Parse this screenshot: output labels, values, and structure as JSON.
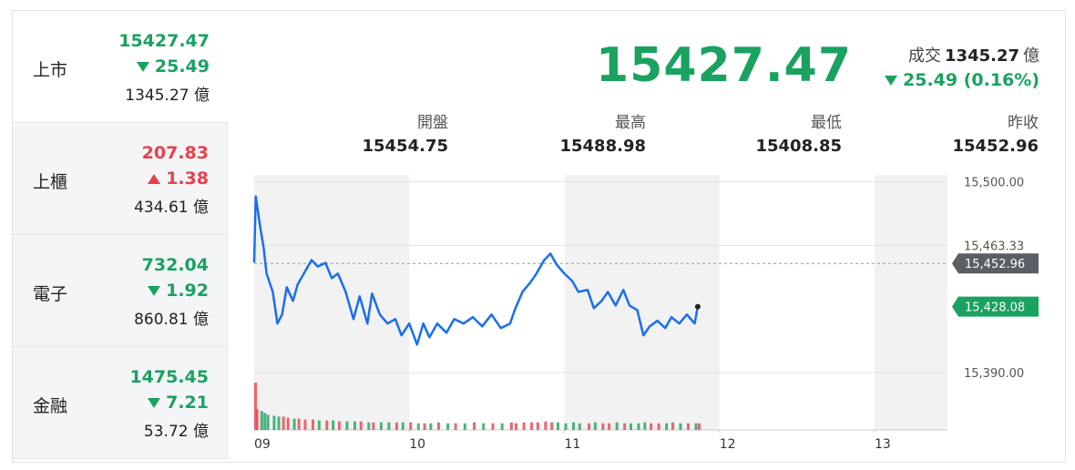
{
  "markets": [
    {
      "name": "上市",
      "price": 15427.47,
      "change": 25.49,
      "direction": "down",
      "volume": "1345.27 億"
    },
    {
      "name": "上櫃",
      "price": 207.83,
      "change": 1.38,
      "direction": "up",
      "volume": "434.61 億"
    },
    {
      "name": "電子",
      "price": 732.04,
      "change": 1.92,
      "direction": "down",
      "volume": "860.81 億"
    },
    {
      "name": "金融",
      "price": 1475.45,
      "change": 7.21,
      "direction": "down",
      "volume": "53.72 億"
    }
  ],
  "quote": {
    "price": 15427.47,
    "turnover_label": "成交",
    "turnover": 1345.27,
    "turnover_unit": "億",
    "change": "25.49 (0.16%)",
    "direction": "down",
    "stats": [
      {
        "label": "開盤",
        "value": 15454.75
      },
      {
        "label": "最高",
        "value": 15488.98
      },
      {
        "label": "最低",
        "value": 15408.85
      },
      {
        "label": "昨收",
        "value": 15452.96
      }
    ]
  },
  "chart_data": {
    "type": "line",
    "color": "#1a6ef0",
    "up_color": "#e8414c",
    "down_color": "#1aa260",
    "x": [
      9.0,
      9.01,
      9.04,
      9.06,
      9.08,
      9.12,
      9.15,
      9.18,
      9.21,
      9.25,
      9.28,
      9.32,
      9.37,
      9.41,
      9.46,
      9.5,
      9.54,
      9.59,
      9.64,
      9.68,
      9.73,
      9.76,
      9.81,
      9.86,
      9.91,
      9.95,
      10.0,
      10.05,
      10.09,
      10.13,
      10.18,
      10.24,
      10.29,
      10.35,
      10.41,
      10.47,
      10.53,
      10.59,
      10.65,
      10.68,
      10.73,
      10.78,
      10.82,
      10.87,
      10.91,
      10.95,
      11.0,
      11.05,
      11.09,
      11.15,
      11.19,
      11.24,
      11.28,
      11.33,
      11.38,
      11.42,
      11.47,
      11.51,
      11.55,
      11.6,
      11.65,
      11.69,
      11.74,
      11.79,
      11.84,
      11.86
    ],
    "values": [
      15453.4,
      15491.6,
      15473.3,
      15462.8,
      15447.1,
      15436.6,
      15418.3,
      15423.5,
      15439.2,
      15431.4,
      15440.8,
      15447.1,
      15454.9,
      15451.2,
      15453.3,
      15444.5,
      15447.1,
      15436.6,
      15420.9,
      15434.0,
      15418.3,
      15435.6,
      15423.5,
      15418.3,
      15420.9,
      15411.5,
      15418.3,
      15406.2,
      15418.3,
      15410.4,
      15418.3,
      15413.0,
      15420.9,
      15418.3,
      15422.0,
      15416.7,
      15423.5,
      15415.7,
      15418.3,
      15426.1,
      15436.6,
      15441.9,
      15447.1,
      15454.9,
      15458.6,
      15452.3,
      15447.1,
      15442.9,
      15436.6,
      15437.7,
      15427.2,
      15431.4,
      15436.6,
      15428.7,
      15437.7,
      15428.7,
      15426.1,
      15411.5,
      15416.7,
      15419.9,
      15415.7,
      15422.0,
      15418.3,
      15423.5,
      15418.3,
      15428.1
    ],
    "volume": [
      50,
      22,
      20,
      18,
      16,
      15,
      14,
      14,
      13,
      12,
      12,
      11,
      11,
      10,
      10,
      10,
      9,
      9,
      9,
      9,
      8,
      8,
      8,
      8,
      8,
      8,
      8,
      7,
      7,
      7,
      8,
      7,
      7,
      7,
      8,
      7,
      7,
      7,
      8,
      7,
      8,
      8,
      8,
      9,
      8,
      8,
      7,
      8,
      7,
      7,
      8,
      7,
      7,
      8,
      7,
      7,
      7,
      8,
      7,
      7,
      7,
      8,
      7,
      7,
      7,
      7
    ],
    "y2lim": [
      0,
      50
    ],
    "xlim": [
      9,
      13.47
    ],
    "ylim": [
      15357,
      15504
    ],
    "xticks": [
      {
        "value": 9,
        "label": "09"
      },
      10,
      11,
      12,
      13
    ],
    "yticks": [
      {
        "value": 15500,
        "label": "15,500.00"
      },
      {
        "value": 15463.33,
        "label": "15,463.33"
      },
      {
        "value": 15390,
        "label": "15,390.00"
      }
    ],
    "reference": {
      "value": 15452.96,
      "label": "15,452.96"
    },
    "last": {
      "value": 15428.08,
      "label": "15,428.08"
    },
    "grid": true
  }
}
